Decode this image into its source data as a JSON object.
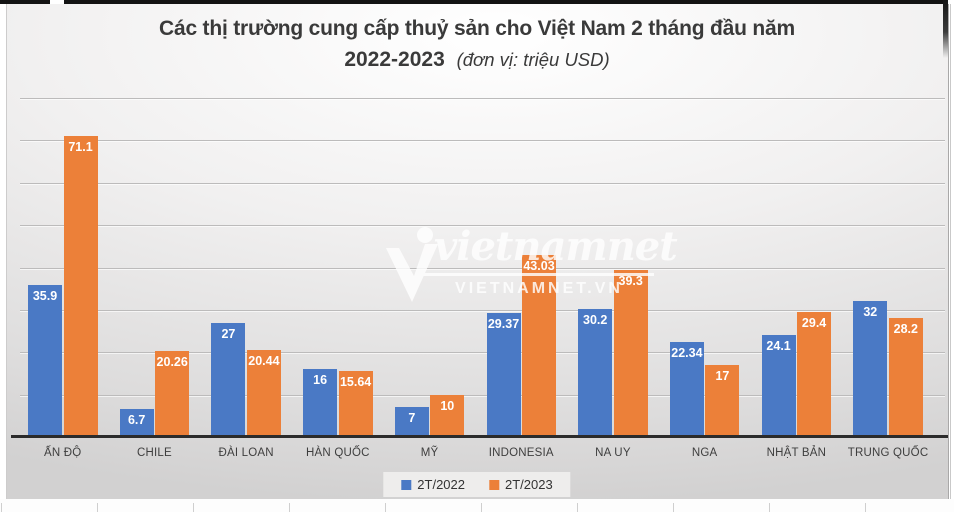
{
  "title": {
    "line1": "Các thị trường cung cấp thuỷ sản cho Việt Nam 2 tháng đầu năm",
    "line2_bold": "2022-2023",
    "line2_note": "(đơn vị: triệu USD)"
  },
  "watermark": {
    "script": "vietnamnet",
    "wordmark": "VIETNAMNET.VN"
  },
  "colors": {
    "series_2022_blue": "#4A79C5",
    "series_2023_orange": "#EC8039",
    "gridline": "#bcbbbb",
    "axis_line": "#2b2b2b",
    "value_label_text": "#ffffff",
    "category_label_text": "#3e3e3e",
    "title_text": "#3a3a3a",
    "legend_background": "#eeedec"
  },
  "chart_data": {
    "type": "bar",
    "title": "Các thị trường cung cấp thuỷ sản cho Việt Nam 2 tháng đầu năm 2022-2023",
    "subtitle_unit": "(đơn vị: triệu USD)",
    "categories": [
      "ẤN ĐỘ",
      "CHILE",
      "ĐÀI LOAN",
      "HÀN QUỐC",
      "MỸ",
      "INDONESIA",
      "NA UY",
      "NGA",
      "NHẬT BẢN",
      "TRUNG QUỐC"
    ],
    "series": [
      {
        "name": "2T/2022",
        "color": "#4A79C5",
        "values": [
          35.9,
          6.7,
          27,
          16,
          7,
          29.37,
          30.2,
          22.34,
          24.1,
          32
        ],
        "labels": [
          "35.9",
          "6.7",
          "27",
          "16",
          "7",
          "29.37",
          "30.2",
          "22.34",
          "24.1",
          "32"
        ]
      },
      {
        "name": "2T/2023",
        "color": "#EC8039",
        "values": [
          71.1,
          20.26,
          20.44,
          15.64,
          10,
          43.03,
          39.3,
          17,
          29.4,
          28.2
        ],
        "labels": [
          "71.1",
          "20.26",
          "20.44",
          "15.64",
          "10",
          "43.03",
          "39.3",
          "17",
          "29.4",
          "28.2"
        ]
      }
    ],
    "xlabel": "",
    "ylabel": "",
    "ylim": [
      0,
      80
    ],
    "grid_step": 10,
    "grid": true,
    "y_axis_labels_visible": false,
    "legend_position": "bottom",
    "value_labels": true
  }
}
